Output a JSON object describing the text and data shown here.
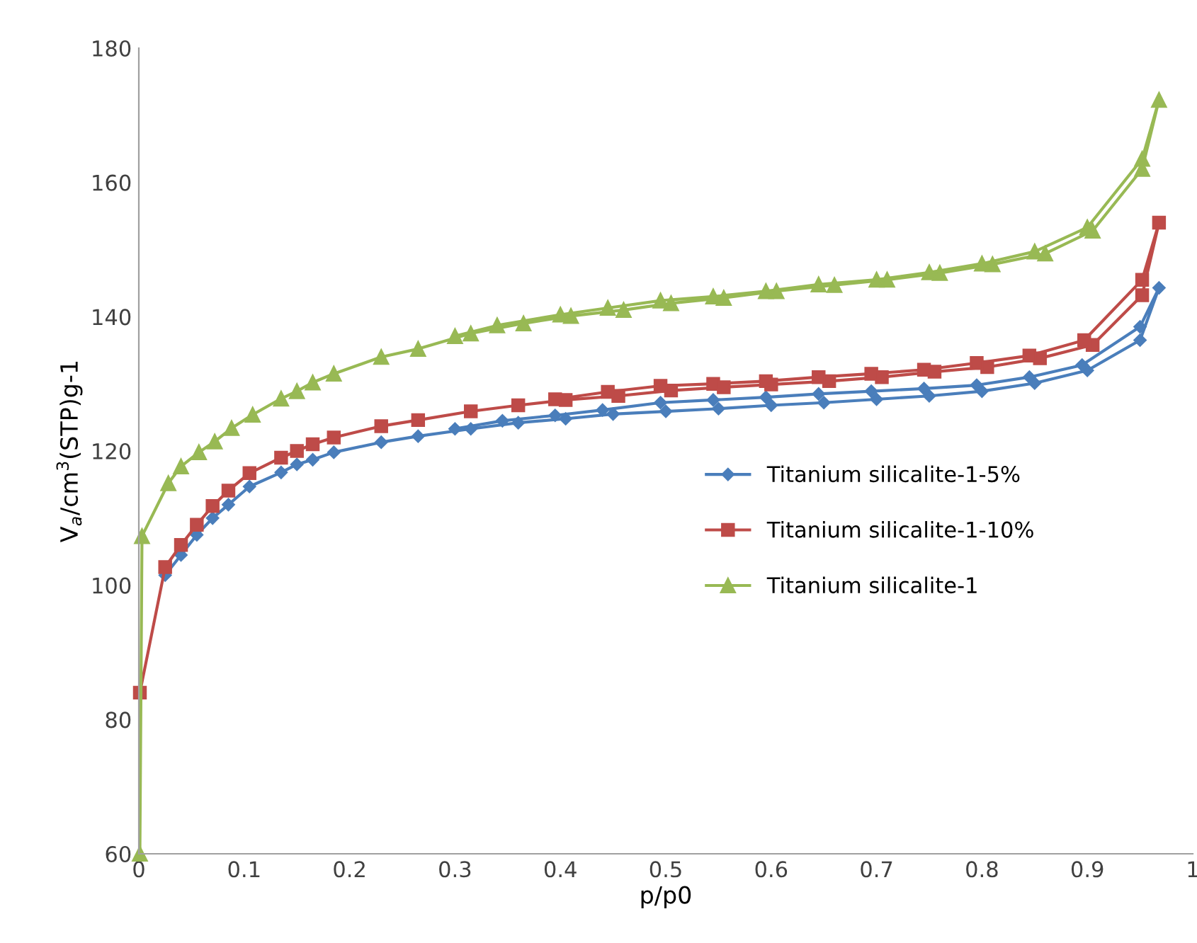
{
  "chart_data": {
    "type": "line",
    "xlabel": "p/p0",
    "ylabel": "V$_{a}$/cm$^{3}$(STP)g-1",
    "xlim": [
      0,
      1
    ],
    "ylim": [
      60,
      180
    ],
    "xticks": [
      0,
      0.1,
      0.2,
      0.3,
      0.4,
      0.5,
      0.6,
      0.7,
      0.8,
      0.9,
      1
    ],
    "yticks": [
      60,
      80,
      100,
      120,
      140,
      160,
      180
    ],
    "grid": false,
    "legend": "center right",
    "line_style": "solid",
    "series": [
      {
        "name": "Titanium silicalite-1-5%",
        "color": "#4a7ebb",
        "marker": "diamond",
        "x": [
          0.025,
          0.04,
          0.055,
          0.07,
          0.085,
          0.105,
          0.135,
          0.15,
          0.165,
          0.185,
          0.23,
          0.265,
          0.315,
          0.36,
          0.405,
          0.45,
          0.5,
          0.55,
          0.6,
          0.65,
          0.7,
          0.75,
          0.8,
          0.85,
          0.9,
          0.95,
          0.968,
          0.95,
          0.895,
          0.845,
          0.795,
          0.745,
          0.695,
          0.645,
          0.595,
          0.545,
          0.495,
          0.44,
          0.395,
          0.345,
          0.3
        ],
        "values": [
          101.5,
          104.5,
          107.5,
          110,
          112,
          114.7,
          116.8,
          118,
          118.7,
          119.8,
          121.3,
          122.2,
          123.3,
          124.2,
          124.8,
          125.5,
          125.9,
          126.3,
          126.8,
          127.2,
          127.7,
          128.2,
          128.9,
          130.1,
          132,
          136.5,
          144.3,
          138.5,
          132.8,
          131,
          129.8,
          129.3,
          128.9,
          128.5,
          128,
          127.6,
          127.2,
          126.1,
          125.3,
          124.5,
          123.3
        ]
      },
      {
        "name": "Titanium silicalite-1-10%",
        "color": "#be4b48",
        "marker": "square",
        "x": [
          0.001,
          0.025,
          0.04,
          0.055,
          0.07,
          0.085,
          0.105,
          0.135,
          0.15,
          0.165,
          0.185,
          0.23,
          0.265,
          0.315,
          0.36,
          0.405,
          0.455,
          0.505,
          0.555,
          0.6,
          0.655,
          0.705,
          0.755,
          0.805,
          0.855,
          0.905,
          0.952,
          0.968,
          0.952,
          0.897,
          0.845,
          0.795,
          0.745,
          0.695,
          0.645,
          0.595,
          0.545,
          0.495,
          0.445,
          0.395
        ],
        "values": [
          84,
          102.7,
          106,
          109,
          111.8,
          114.1,
          116.7,
          119,
          120,
          121,
          122,
          123.7,
          124.6,
          125.9,
          126.8,
          127.6,
          128.2,
          129,
          129.5,
          129.9,
          130.4,
          131,
          131.8,
          132.5,
          133.8,
          135.8,
          143.2,
          154,
          145.5,
          136.5,
          134.2,
          133.1,
          132.1,
          131.5,
          131,
          130.4,
          130,
          129.7,
          128.8,
          127.7
        ]
      },
      {
        "name": "Titanium silicalite-1",
        "color": "#98b954",
        "marker": "triangle",
        "x": [
          0.001,
          0.003,
          0.028,
          0.04,
          0.057,
          0.072,
          0.088,
          0.108,
          0.135,
          0.15,
          0.165,
          0.185,
          0.23,
          0.265,
          0.315,
          0.365,
          0.41,
          0.46,
          0.505,
          0.555,
          0.605,
          0.66,
          0.71,
          0.76,
          0.81,
          0.86,
          0.905,
          0.952,
          0.968,
          0.952,
          0.9,
          0.85,
          0.8,
          0.75,
          0.7,
          0.645,
          0.595,
          0.545,
          0.495,
          0.445,
          0.4,
          0.34,
          0.3
        ],
        "values": [
          60,
          107.3,
          115.2,
          117.7,
          119.8,
          121.4,
          123.4,
          125.4,
          127.8,
          128.9,
          130.2,
          131.5,
          134,
          135.2,
          137.5,
          139,
          140.1,
          141,
          142,
          142.8,
          143.8,
          144.7,
          145.5,
          146.5,
          147.8,
          149.4,
          152.8,
          162,
          172.3,
          163.5,
          153.3,
          149.7,
          147.9,
          146.6,
          145.5,
          144.8,
          143.8,
          143,
          142.4,
          141.3,
          140.3,
          138.7,
          137.1
        ]
      }
    ]
  }
}
